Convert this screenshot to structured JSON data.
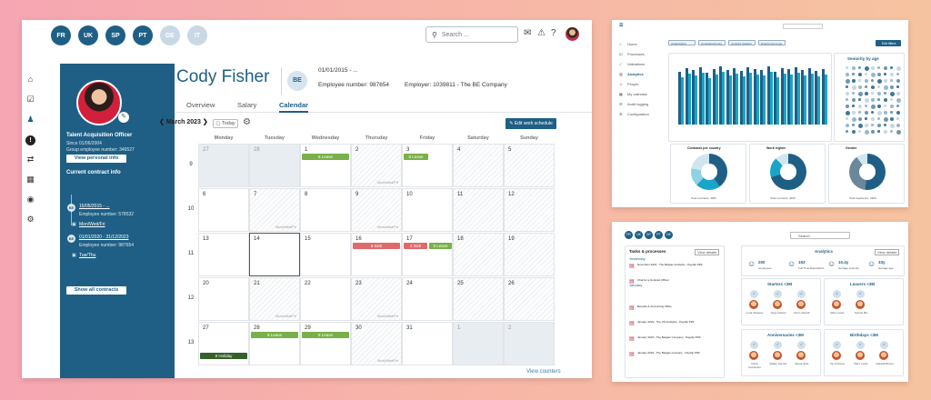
{
  "main": {
    "languages": [
      {
        "code": "FR",
        "dim": false
      },
      {
        "code": "UK",
        "dim": false
      },
      {
        "code": "SP",
        "dim": false
      },
      {
        "code": "PT",
        "dim": false
      },
      {
        "code": "DE",
        "dim": true
      },
      {
        "code": "IT",
        "dim": true
      }
    ],
    "search_placeholder": "Search ...",
    "profile": {
      "title": "Talent Acquisition Officer",
      "since": "Since 01/06/2004",
      "group_number": "Group employee number: 346527",
      "view_button": "View personal info",
      "contracts_header": "Current contract info",
      "contracts": [
        {
          "dot": "BE",
          "range": "15/05/2015 - ...",
          "number": "Employee number: 578532",
          "schedule": "Mon/Wed/Fri"
        },
        {
          "dot": "BE",
          "range": "01/01/2020 - 31/12/2023",
          "number": "Employee number: 987654",
          "schedule": "Tue/Thu"
        }
      ],
      "show_all": "Show all contracts"
    },
    "employee": {
      "name": "Cody Fisher",
      "badge": "BE",
      "period": "01/01/2015 - ...",
      "employee_number": "Employee number: 987654",
      "employer": "Employer: 1039811 - The BE Company"
    },
    "tabs": [
      "Overview",
      "Salary",
      "Calendar"
    ],
    "calendar": {
      "month": "March 2023",
      "today_label": "Today",
      "edit_button": "Edit work schedule",
      "days": [
        "Monday",
        "Tuesday",
        "Wednesday",
        "Thursday",
        "Friday",
        "Saturday",
        "Sunday"
      ],
      "weeks": [
        "9",
        "10",
        "11",
        "12",
        "13"
      ],
      "schedule_text": "Mon/Wed/Fri",
      "tue_thu_text": "Tue/Thu",
      "view_counters": "View counters",
      "rows": [
        [
          {
            "d": "27",
            "t": "gray"
          },
          {
            "d": "28",
            "t": "gray"
          },
          {
            "d": "1",
            "t": "n",
            "ev": [
              {
                "l": "8 Leave",
                "c": "leave",
                "w": "full"
              }
            ]
          },
          {
            "d": "2",
            "t": "hatch"
          },
          {
            "d": "3",
            "t": "n",
            "ev": [
              {
                "l": "8 Leave",
                "c": "leave",
                "w": "half"
              }
            ]
          },
          {
            "d": "4",
            "t": "hatch"
          },
          {
            "d": "5",
            "t": "hatch"
          }
        ],
        [
          {
            "d": "6",
            "t": "n"
          },
          {
            "d": "7",
            "t": "hatch"
          },
          {
            "d": "8",
            "t": "n"
          },
          {
            "d": "9",
            "t": "hatch"
          },
          {
            "d": "10",
            "t": "n"
          },
          {
            "d": "11",
            "t": "hatch"
          },
          {
            "d": "12",
            "t": "hatch"
          }
        ],
        [
          {
            "d": "13",
            "t": "n"
          },
          {
            "d": "14",
            "t": "today"
          },
          {
            "d": "15",
            "t": "n"
          },
          {
            "d": "16",
            "t": "n",
            "ev": [
              {
                "l": "8 Sick",
                "c": "sick",
                "w": "full"
              }
            ]
          },
          {
            "d": "17",
            "t": "n",
            "ev": [
              {
                "l": "4 Sick",
                "c": "sick",
                "w": "left"
              },
              {
                "l": "5 Leave",
                "c": "leave",
                "w": "right"
              }
            ]
          },
          {
            "d": "18",
            "t": "hatch"
          },
          {
            "d": "19",
            "t": "hatch"
          }
        ],
        [
          {
            "d": "20",
            "t": "n"
          },
          {
            "d": "21",
            "t": "hatch"
          },
          {
            "d": "22",
            "t": "n"
          },
          {
            "d": "23",
            "t": "hatch"
          },
          {
            "d": "24",
            "t": "n"
          },
          {
            "d": "25",
            "t": "hatch"
          },
          {
            "d": "26",
            "t": "hatch"
          }
        ],
        [
          {
            "d": "27",
            "t": "n",
            "ev": [
              {
                "l": "8 Holiday",
                "c": "holiday",
                "w": "full",
                "bottom": true
              }
            ]
          },
          {
            "d": "28",
            "t": "n",
            "ev": [
              {
                "l": "8 Leave",
                "c": "leave",
                "w": "full"
              }
            ]
          },
          {
            "d": "29",
            "t": "n",
            "ev": [
              {
                "l": "8 Leave",
                "c": "leave",
                "w": "full"
              }
            ]
          },
          {
            "d": "30",
            "t": "hatch"
          },
          {
            "d": "31",
            "t": "n"
          },
          {
            "d": "1",
            "t": "gray"
          },
          {
            "d": "2",
            "t": "gray"
          }
        ]
      ]
    }
  },
  "analytics": {
    "nav": [
      "Home",
      "Processes",
      "Validations",
      "Analytics",
      "People",
      "My calendar",
      "Audit logging",
      "Configuration"
    ],
    "filters": [
      "Organization",
      "Contracted hours",
      "Contract duration",
      "Employment type"
    ],
    "edit_button": "Edit filters",
    "seniority_title": "Seniority by age",
    "donuts": [
      {
        "title": "Contracts per country",
        "footer": "Total contracts: 4380"
      },
      {
        "title": "Work regime",
        "footer": "Total contracts: 3400"
      },
      {
        "title": "Gender",
        "footer": "Total headcount: 4380"
      }
    ]
  },
  "dashboard": {
    "languages": [
      "FR",
      "UK",
      "SP",
      "PT",
      "DE"
    ],
    "search_placeholder": "Search",
    "tasks_title": "Tasks & processes",
    "tasks_button": "View details",
    "tasks_sections": [
      "Yesterday",
      "January"
    ],
    "tasks": [
      "November 2024 - The Belgian Analytics - Payslip PDF",
      "Chat for a Contract Officer",
      "Benefits & Accounting Office",
      "January 2023 - The US Analytics - Payslip PDF",
      "January 2023 - The Belgian Company - Payslip PDF",
      "January 2023 - The Belgian company - Payslip PDF"
    ],
    "analytics_title": "Analytics",
    "analytics_button": "View details",
    "kpis": [
      {
        "value": "200",
        "label": "employees"
      },
      {
        "value": "193",
        "label": "Full Time Equivalents"
      },
      {
        "value": "10.4y",
        "label": "average seniority"
      },
      {
        "value": "33y",
        "label": "average age"
      }
    ],
    "cards": [
      {
        "title": "Starters <3M",
        "people": [
          "Lena Vasquez",
          "Jorge Adams",
          "Piet Luthardt"
        ]
      },
      {
        "title": "Leavers <3M",
        "people": [
          "Marc Lewis",
          "Camile Bio"
        ]
      },
      {
        "title": "Anniversaries <3M",
        "people": [
          "Karla Cervantes",
          "Walter Zenthe",
          "Elena Stott"
        ]
      },
      {
        "title": "Birthdays <3M",
        "people": [
          "Iris Johnson",
          "Marc Lewis",
          "Isabella Bosce"
        ]
      }
    ]
  }
}
